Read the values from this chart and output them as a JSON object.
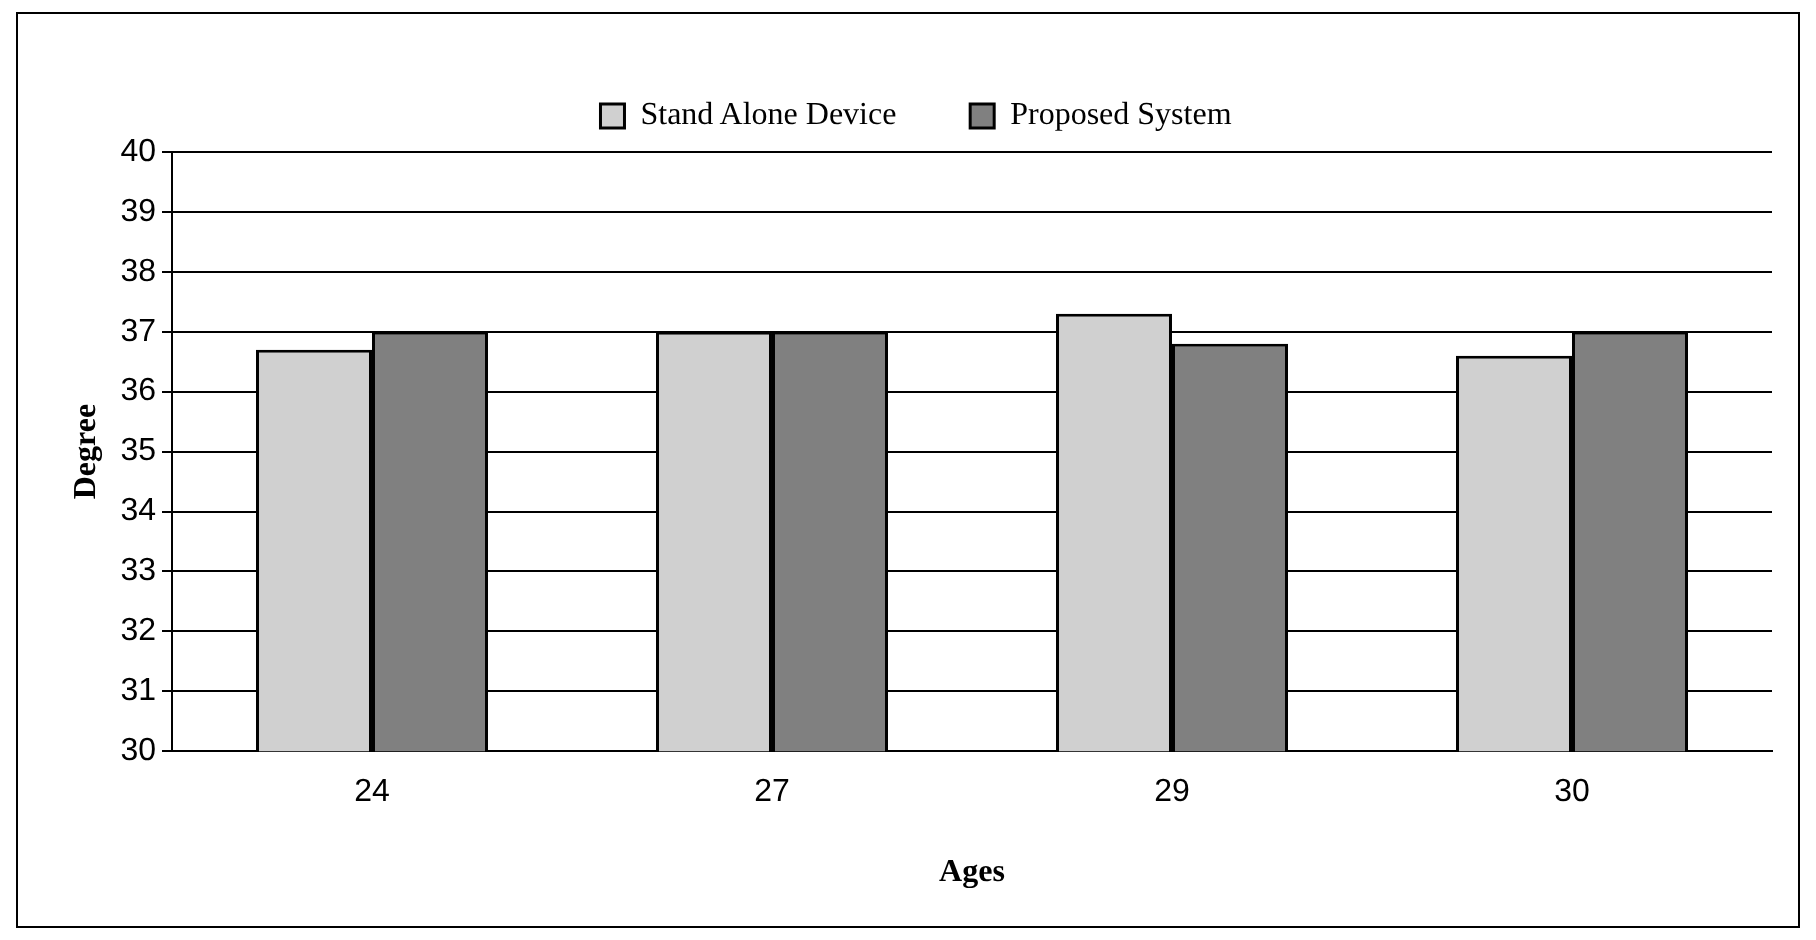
{
  "chart_data": {
    "type": "bar",
    "xlabel": "Ages",
    "ylabel": "Degree",
    "categories": [
      "24",
      "27",
      "29",
      "30"
    ],
    "series": [
      {
        "name": "Stand Alone Device",
        "color": "#d0d0d0",
        "values": [
          36.7,
          37,
          37.3,
          36.6
        ]
      },
      {
        "name": "Proposed System",
        "color": "#808080",
        "values": [
          37,
          37,
          36.8,
          37
        ]
      }
    ],
    "ylim": [
      30,
      40
    ],
    "yticks": [
      30,
      31,
      32,
      33,
      34,
      35,
      36,
      37,
      38,
      39,
      40
    ],
    "grid": "y",
    "legend": "top"
  }
}
